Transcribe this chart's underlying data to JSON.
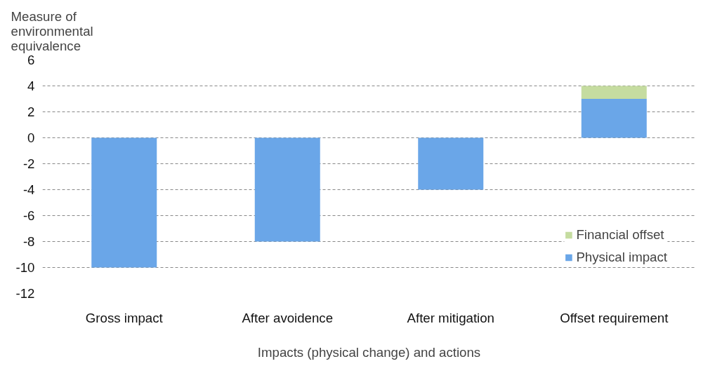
{
  "chart_data": {
    "type": "bar",
    "stacked": true,
    "xlabel": "Impacts (physical change) and actions",
    "ylabel": "Measure of environmental equivalence",
    "categories": [
      "Gross impact",
      "After avoidence",
      "After mitigation",
      "Offset requirement"
    ],
    "series": [
      {
        "name": "Physical impact",
        "color": "#6aa6e8",
        "values": [
          -10,
          -8,
          -4,
          3
        ]
      },
      {
        "name": "Financial offset",
        "color": "#c5dca0",
        "values": [
          null,
          null,
          null,
          1
        ]
      }
    ],
    "ylim": [
      -12,
      6
    ],
    "yticks": [
      -12,
      -10,
      -8,
      -6,
      -4,
      -2,
      0,
      2,
      4,
      6
    ],
    "grid": "y",
    "legend": "bottom right"
  }
}
